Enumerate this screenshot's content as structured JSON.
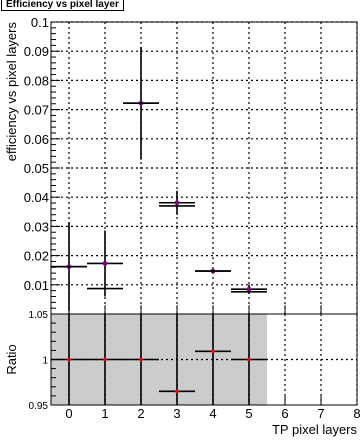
{
  "chart_data": [
    {
      "type": "scatter",
      "title": "Efficiency vs pixel layer",
      "xlabel": "TP pixel layers",
      "ylabel": "efficiency vs pixel layers",
      "xlim": [
        -0.5,
        8
      ],
      "ylim": [
        0,
        0.1
      ],
      "grid": true,
      "x_ticks": [
        "0",
        "1",
        "2",
        "3",
        "4",
        "5",
        "6",
        "7",
        "8"
      ],
      "y_ticks": [
        "0.01",
        "0.02",
        "0.03",
        "0.04",
        "0.05",
        "0.06",
        "0.07",
        "0.08",
        "0.09",
        "0.1"
      ],
      "series": [
        {
          "color": "#800080",
          "points": [
            {
              "x": 0,
              "y": 0.0162,
              "yerr": 0.0152
            },
            {
              "x": 1,
              "y": 0.0173,
              "yerr": 0.0113
            },
            {
              "x": 2,
              "y": 0.0722,
              "yerr": 0.0193
            },
            {
              "x": 3,
              "y": 0.0381,
              "yerr": 0.0041
            },
            {
              "x": 4,
              "y": 0.0147,
              "yerr": 0.0006
            },
            {
              "x": 5,
              "y": 0.0085,
              "yerr": 0.0016
            }
          ]
        },
        {
          "color": "#000000",
          "points": [
            {
              "x": 0,
              "y": 0.0162
            },
            {
              "x": 1,
              "y": 0.0087
            },
            {
              "x": 2,
              "y": 0.0722
            },
            {
              "x": 3,
              "y": 0.037
            },
            {
              "x": 4,
              "y": 0.0147
            },
            {
              "x": 5,
              "y": 0.0076
            }
          ]
        }
      ]
    },
    {
      "type": "scatter",
      "ylabel": "Ratio",
      "xlabel": "TP pixel layers",
      "xlim": [
        -0.5,
        8
      ],
      "ylim": [
        0.95,
        1.05
      ],
      "grid": true,
      "y_ticks": [
        "0.95",
        "1",
        "1.05"
      ],
      "band": {
        "x_from": -0.5,
        "x_to": 5.5,
        "y_from": 0.95,
        "y_to": 1.05,
        "color": "#cccccc"
      },
      "points": [
        {
          "x": 0,
          "y": 1.0
        },
        {
          "x": 1,
          "y": 1.0
        },
        {
          "x": 2,
          "y": 1.0
        },
        {
          "x": 3,
          "y": 0.965
        },
        {
          "x": 4,
          "y": 1.009
        },
        {
          "x": 5,
          "y": 1.0
        }
      ]
    }
  ]
}
